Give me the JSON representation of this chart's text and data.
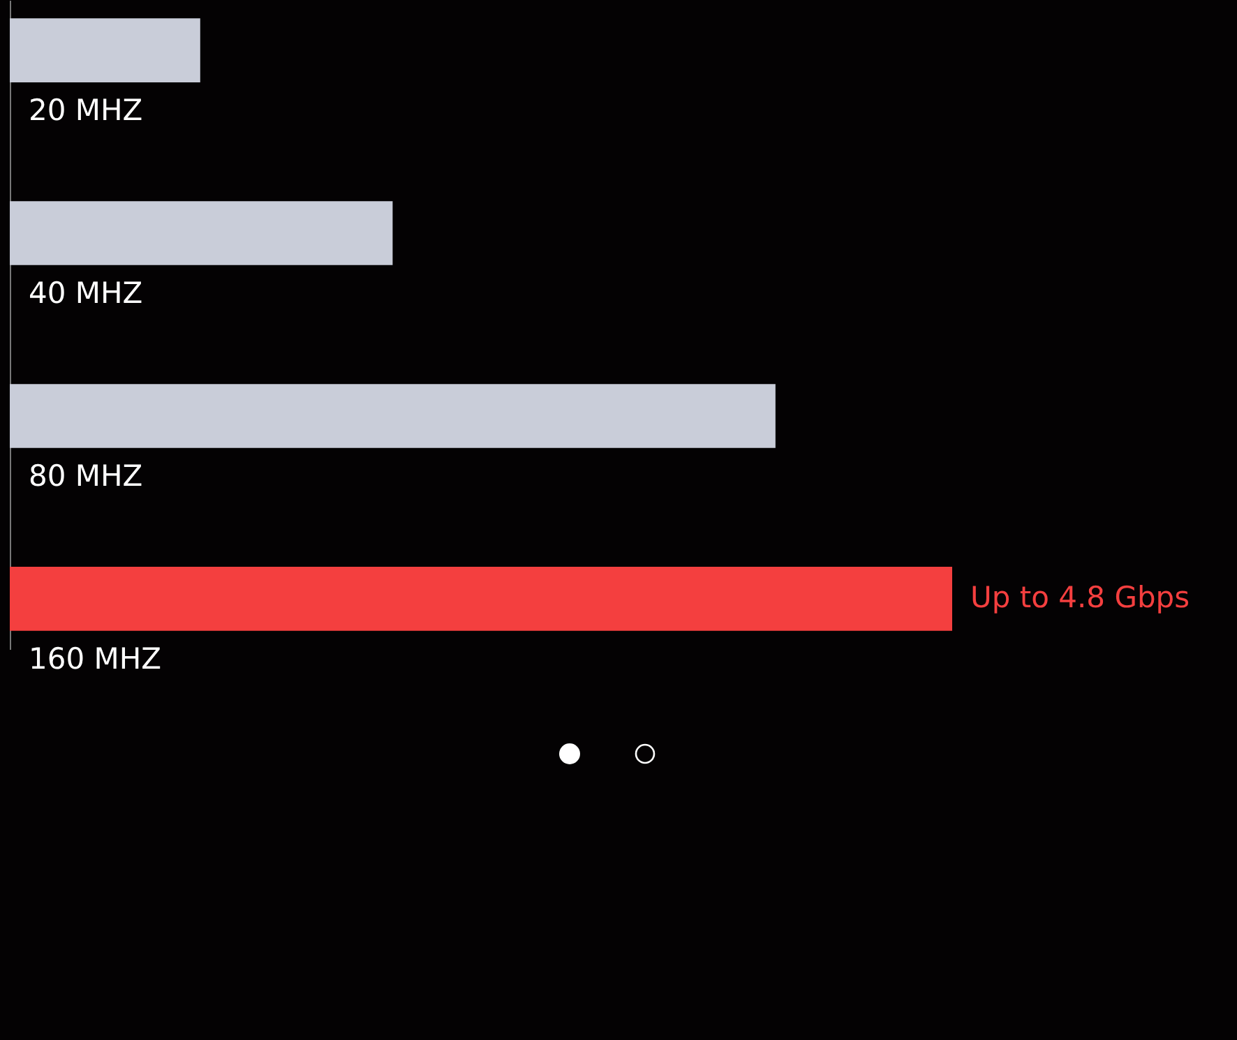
{
  "chart_data": {
    "type": "bar",
    "orientation": "horizontal",
    "categories": [
      "20 MHZ",
      "40 MHZ",
      "80 MHZ",
      "160 MHZ"
    ],
    "values": [
      0.97,
      1.95,
      3.9,
      4.8
    ],
    "colors": [
      "#c9cdd9",
      "#c9cdd9",
      "#c9cdd9",
      "#f43f3f"
    ],
    "value_labels": [
      null,
      null,
      null,
      "Up to 4.8 Gbps"
    ]
  }
}
